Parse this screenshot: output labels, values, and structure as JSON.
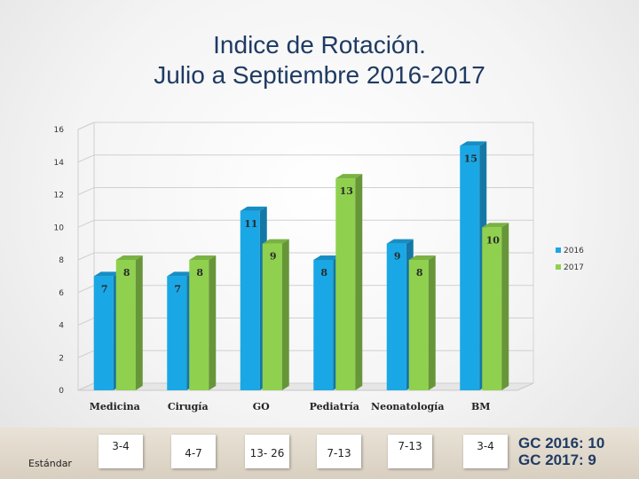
{
  "slide": {
    "title_line1": "Indice de Rotación.",
    "title_line2": "Julio a Septiembre 2016-2017"
  },
  "chart_data": {
    "type": "bar",
    "categories": [
      "Medicina",
      "Cirugía",
      "GO",
      "Pediatría",
      "Neonatología",
      "BM"
    ],
    "series": [
      {
        "name": "2016",
        "color": "#1aa7e6",
        "values": [
          7,
          7,
          11,
          8,
          9,
          15
        ]
      },
      {
        "name": "2017",
        "color": "#8fd14f",
        "values": [
          8,
          8,
          9,
          13,
          8,
          10
        ]
      }
    ],
    "ylim": [
      0,
      16
    ],
    "yticks": [
      0,
      2,
      4,
      6,
      8,
      10,
      12,
      14,
      16
    ],
    "grid": true,
    "legend": "right",
    "title": "",
    "xlabel": "",
    "ylabel": ""
  },
  "standards": {
    "label": "Estándar",
    "values": [
      "3-4",
      "4-7",
      "13- 26",
      "7-13",
      "7-13",
      "3-4"
    ]
  },
  "gc_note": {
    "line1": "GC 2016: 10",
    "line2": "GC 2017: 9"
  }
}
